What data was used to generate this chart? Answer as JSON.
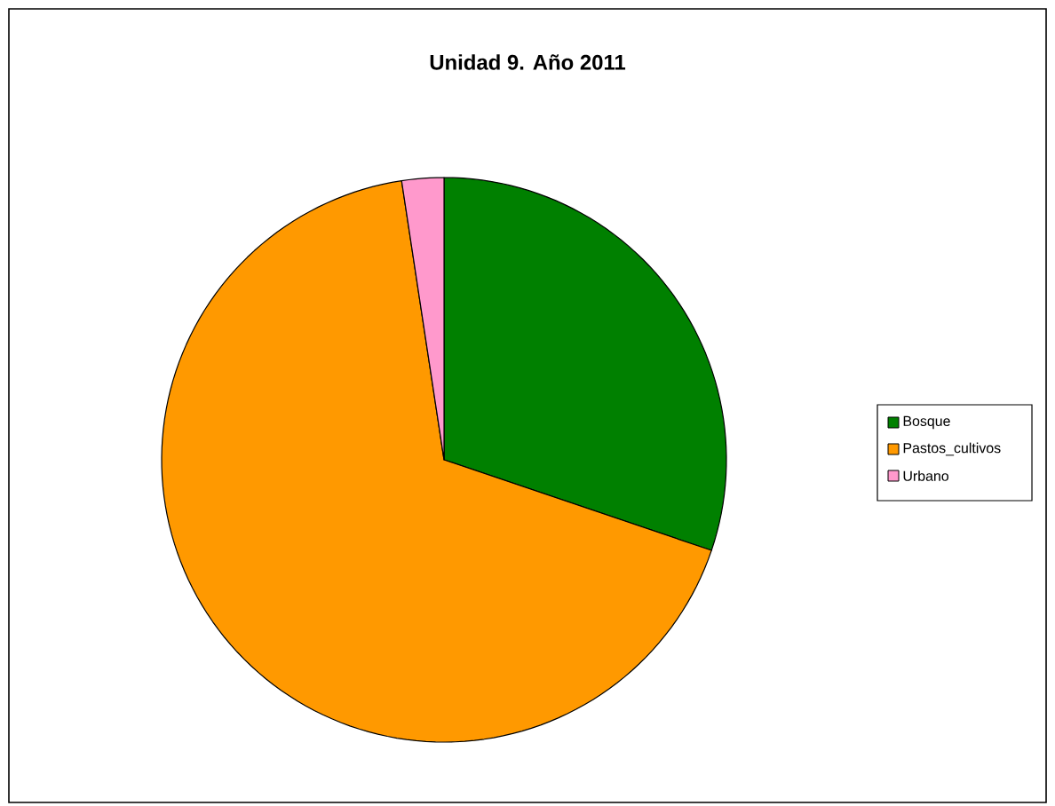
{
  "chart_data": {
    "type": "pie",
    "title": "Unidad 9. Año 2011",
    "categories": [
      "Bosque",
      "Pastos_cultivos",
      "Urbano"
    ],
    "values": [
      30.2,
      67.4,
      2.4
    ],
    "colors": [
      "#008000",
      "#ff9900",
      "#ff99cc"
    ],
    "legend": "right"
  }
}
